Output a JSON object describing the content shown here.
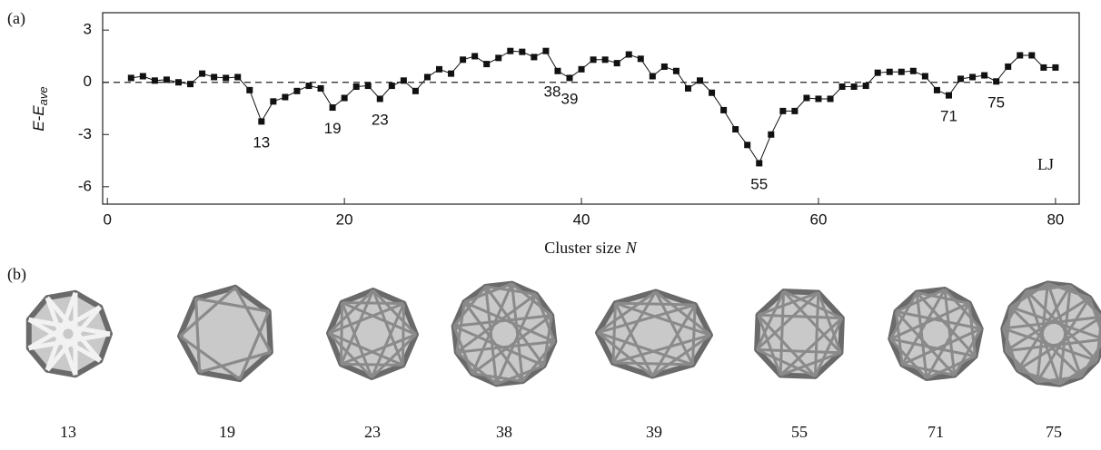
{
  "chart_data": {
    "type": "line",
    "panel_label": "(a)",
    "x_label": "Cluster size",
    "x_label_var": "N",
    "y_label": "E-E",
    "y_label_sub": "ave",
    "x": [
      2,
      3,
      4,
      5,
      6,
      7,
      8,
      9,
      10,
      11,
      12,
      13,
      14,
      15,
      16,
      17,
      18,
      19,
      20,
      21,
      22,
      23,
      24,
      25,
      26,
      27,
      28,
      29,
      30,
      31,
      32,
      33,
      34,
      35,
      36,
      37,
      38,
      39,
      40,
      41,
      42,
      43,
      44,
      45,
      46,
      47,
      48,
      49,
      50,
      51,
      52,
      53,
      54,
      55,
      56,
      57,
      58,
      59,
      60,
      61,
      62,
      63,
      64,
      65,
      66,
      67,
      68,
      69,
      70,
      71,
      72,
      73,
      74,
      75,
      76,
      77,
      78,
      79,
      80
    ],
    "values": [
      0.25,
      0.35,
      0.1,
      0.15,
      0.0,
      -0.1,
      0.5,
      0.3,
      0.25,
      0.3,
      -0.45,
      -2.25,
      -1.1,
      -0.85,
      -0.5,
      -0.2,
      -0.35,
      -1.45,
      -0.9,
      -0.25,
      -0.2,
      -0.95,
      -0.2,
      0.1,
      -0.5,
      0.3,
      0.75,
      0.5,
      1.3,
      1.5,
      1.05,
      1.4,
      1.8,
      1.75,
      1.45,
      1.8,
      0.65,
      0.25,
      0.75,
      1.3,
      1.3,
      1.1,
      1.6,
      1.35,
      0.35,
      0.9,
      0.65,
      -0.35,
      0.1,
      -0.6,
      -1.6,
      -2.7,
      -3.6,
      -4.65,
      -3.0,
      -1.65,
      -1.65,
      -0.9,
      -0.95,
      -0.95,
      -0.25,
      -0.25,
      -0.2,
      0.55,
      0.6,
      0.6,
      0.65,
      0.35,
      -0.45,
      -0.75,
      0.2,
      0.3,
      0.4,
      0.05,
      0.9,
      1.55,
      1.55,
      0.85,
      0.85
    ],
    "color": "#111111",
    "xlim": [
      -0.4,
      82
    ],
    "xticks": [
      0,
      20,
      40,
      60,
      80
    ],
    "ylim": [
      -7,
      4
    ],
    "yticks": [
      -6,
      -3,
      0,
      3
    ],
    "reference_line": 0,
    "annotations": [
      {
        "text": "13",
        "x": 13
      },
      {
        "text": "19",
        "x": 19
      },
      {
        "text": "23",
        "x": 23
      },
      {
        "text": "38",
        "x": 38
      },
      {
        "text": "39",
        "x": 39
      },
      {
        "text": "55",
        "x": 55
      },
      {
        "text": "71",
        "x": 71
      },
      {
        "text": "75",
        "x": 75
      }
    ],
    "legend_text": "LJ"
  },
  "panel_b": {
    "panel_label": "(b)",
    "structures": [
      "13",
      "19",
      "23",
      "38",
      "39",
      "55",
      "71",
      "75"
    ]
  }
}
